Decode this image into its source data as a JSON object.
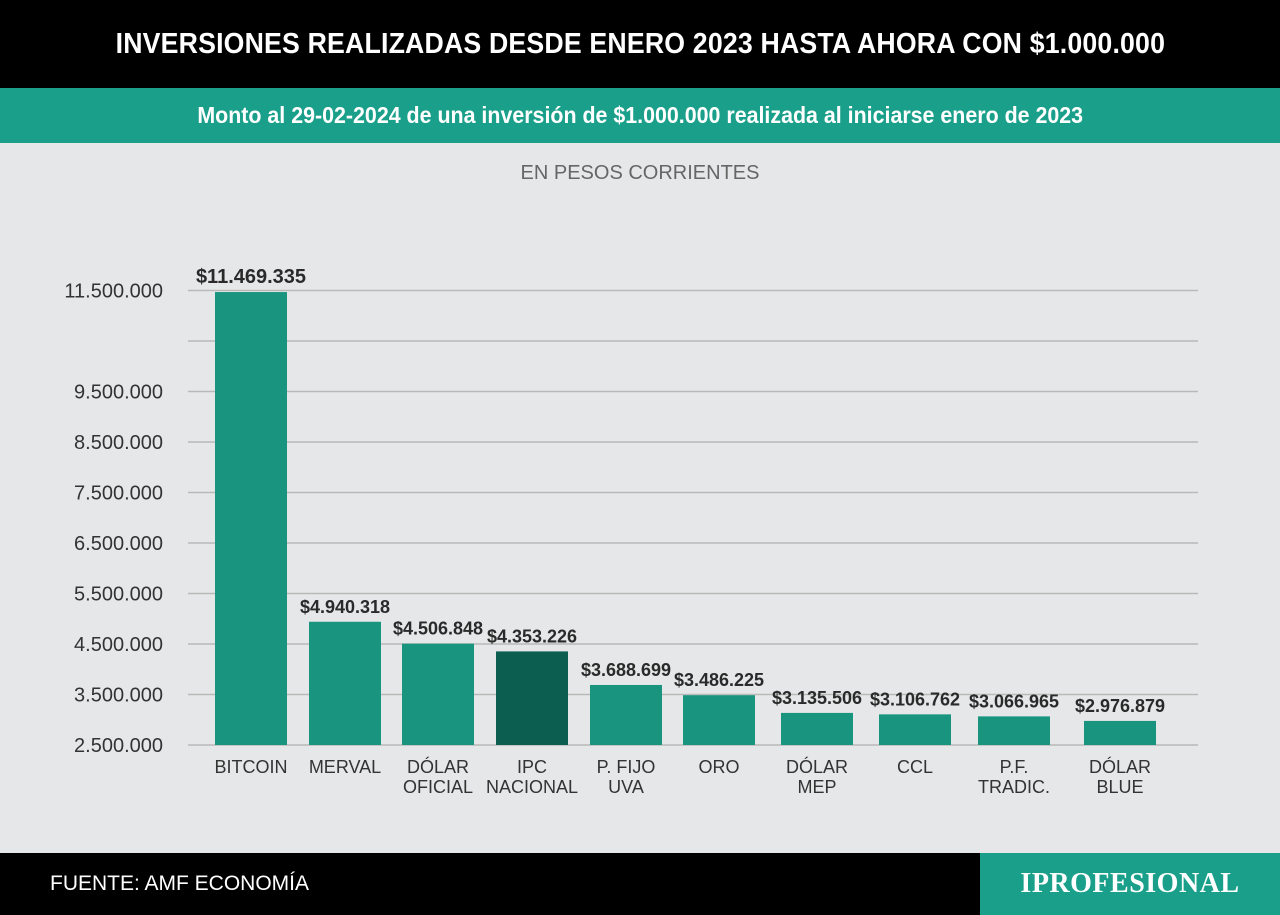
{
  "header": {
    "title": "INVERSIONES REALIZADAS DESDE ENERO 2023 HASTA AHORA CON $1.000.000"
  },
  "subheader": {
    "title": "Monto al 29-02-2024 de una inversión de $1.000.000 realizada al iniciarse enero de 2023"
  },
  "footer": {
    "source": "FUENTE: AMF ECONOMÍA",
    "brand": "IPROFESIONAL"
  },
  "colors": {
    "bar": "#19957f",
    "highlight": "#0c5e51",
    "header_bg": "#000000",
    "accent": "#1aa08a",
    "background": "#e6e7e8"
  },
  "chart_data": {
    "type": "bar",
    "subtitle": "EN PESOS CORRIENTES",
    "categories": [
      [
        "BITCOIN"
      ],
      [
        "MERVAL"
      ],
      [
        "DÓLAR",
        "OFICIAL"
      ],
      [
        "IPC",
        "NACIONAL"
      ],
      [
        "P. FIJO",
        "UVA"
      ],
      [
        "ORO"
      ],
      [
        "DÓLAR",
        "MEP"
      ],
      [
        "CCL"
      ],
      [
        "P.F.",
        "TRADIC."
      ],
      [
        "DÓLAR",
        "BLUE"
      ]
    ],
    "values": [
      11469335,
      4940318,
      4506848,
      4353226,
      3688699,
      3486225,
      3135506,
      3106762,
      3066965,
      2976879
    ],
    "value_labels": [
      "$11.469.335",
      "$4.940.318",
      "$4.506.848",
      "$4.353.226",
      "$3.688.699",
      "$3.486.225",
      "$3.135.506",
      "$3.106.762",
      "$3.066.965",
      "$2.976.879"
    ],
    "highlight_index": 3,
    "y_tick_labels": [
      "2.500.000",
      "3.500.000",
      "4.500.000",
      "5.500.000",
      "6.500.000",
      "7.500.000",
      "8.500.000",
      "9.500.000",
      "11.500.000"
    ],
    "grid": true,
    "legend": "none"
  }
}
